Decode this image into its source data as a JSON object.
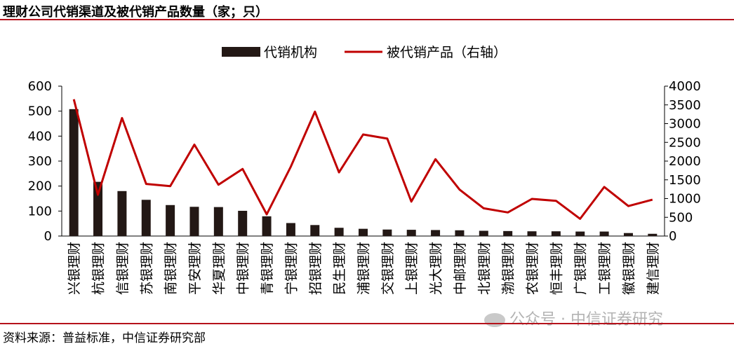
{
  "title": "理财公司代销渠道及被代销产品数量（家；只）",
  "source": "资料来源：普益标准，中信证券研究部",
  "watermark": "公众号 · 中信证券研究",
  "colors": {
    "bar": "#231815",
    "line": "#c00000",
    "rule": "#b5121b"
  },
  "chart_data": {
    "type": "bar+line",
    "categories": [
      "兴银理财",
      "杭银理财",
      "信银理财",
      "苏银理财",
      "南银理财",
      "平安理财",
      "华夏理财",
      "中银理财",
      "青银理财",
      "宁银理财",
      "招银理财",
      "民生理财",
      "浦银理财",
      "交银理财",
      "上银理财",
      "光大理财",
      "中邮理财",
      "北银理财",
      "渤银理财",
      "农银理财",
      "恒丰理财",
      "广银理财",
      "工银理财",
      "徽银理财",
      "建信理财"
    ],
    "series": [
      {
        "name": "代销机构",
        "type": "bar",
        "axis": "left",
        "values": [
          508,
          217,
          180,
          145,
          124,
          117,
          116,
          101,
          79,
          52,
          44,
          33,
          29,
          26,
          25,
          24,
          23,
          21,
          20,
          19,
          19,
          18,
          18,
          12,
          9
        ]
      },
      {
        "name": "被代销产品（右轴）",
        "type": "line",
        "axis": "right",
        "values": [
          3650,
          1100,
          3150,
          1390,
          1330,
          2440,
          1370,
          1790,
          580,
          1850,
          3320,
          1700,
          2710,
          2600,
          920,
          2050,
          1240,
          740,
          630,
          990,
          940,
          460,
          1310,
          800,
          970
        ]
      }
    ],
    "yleft": {
      "min": 0,
      "max": 600,
      "ticks": [
        "0",
        "100",
        "200",
        "300",
        "400",
        "500",
        "600"
      ]
    },
    "yright": {
      "min": 0,
      "max": 4000,
      "ticks": [
        "0",
        "500",
        "1000",
        "1500",
        "2000",
        "2500",
        "3000",
        "3500",
        "4000"
      ]
    },
    "legend": "top-center"
  }
}
